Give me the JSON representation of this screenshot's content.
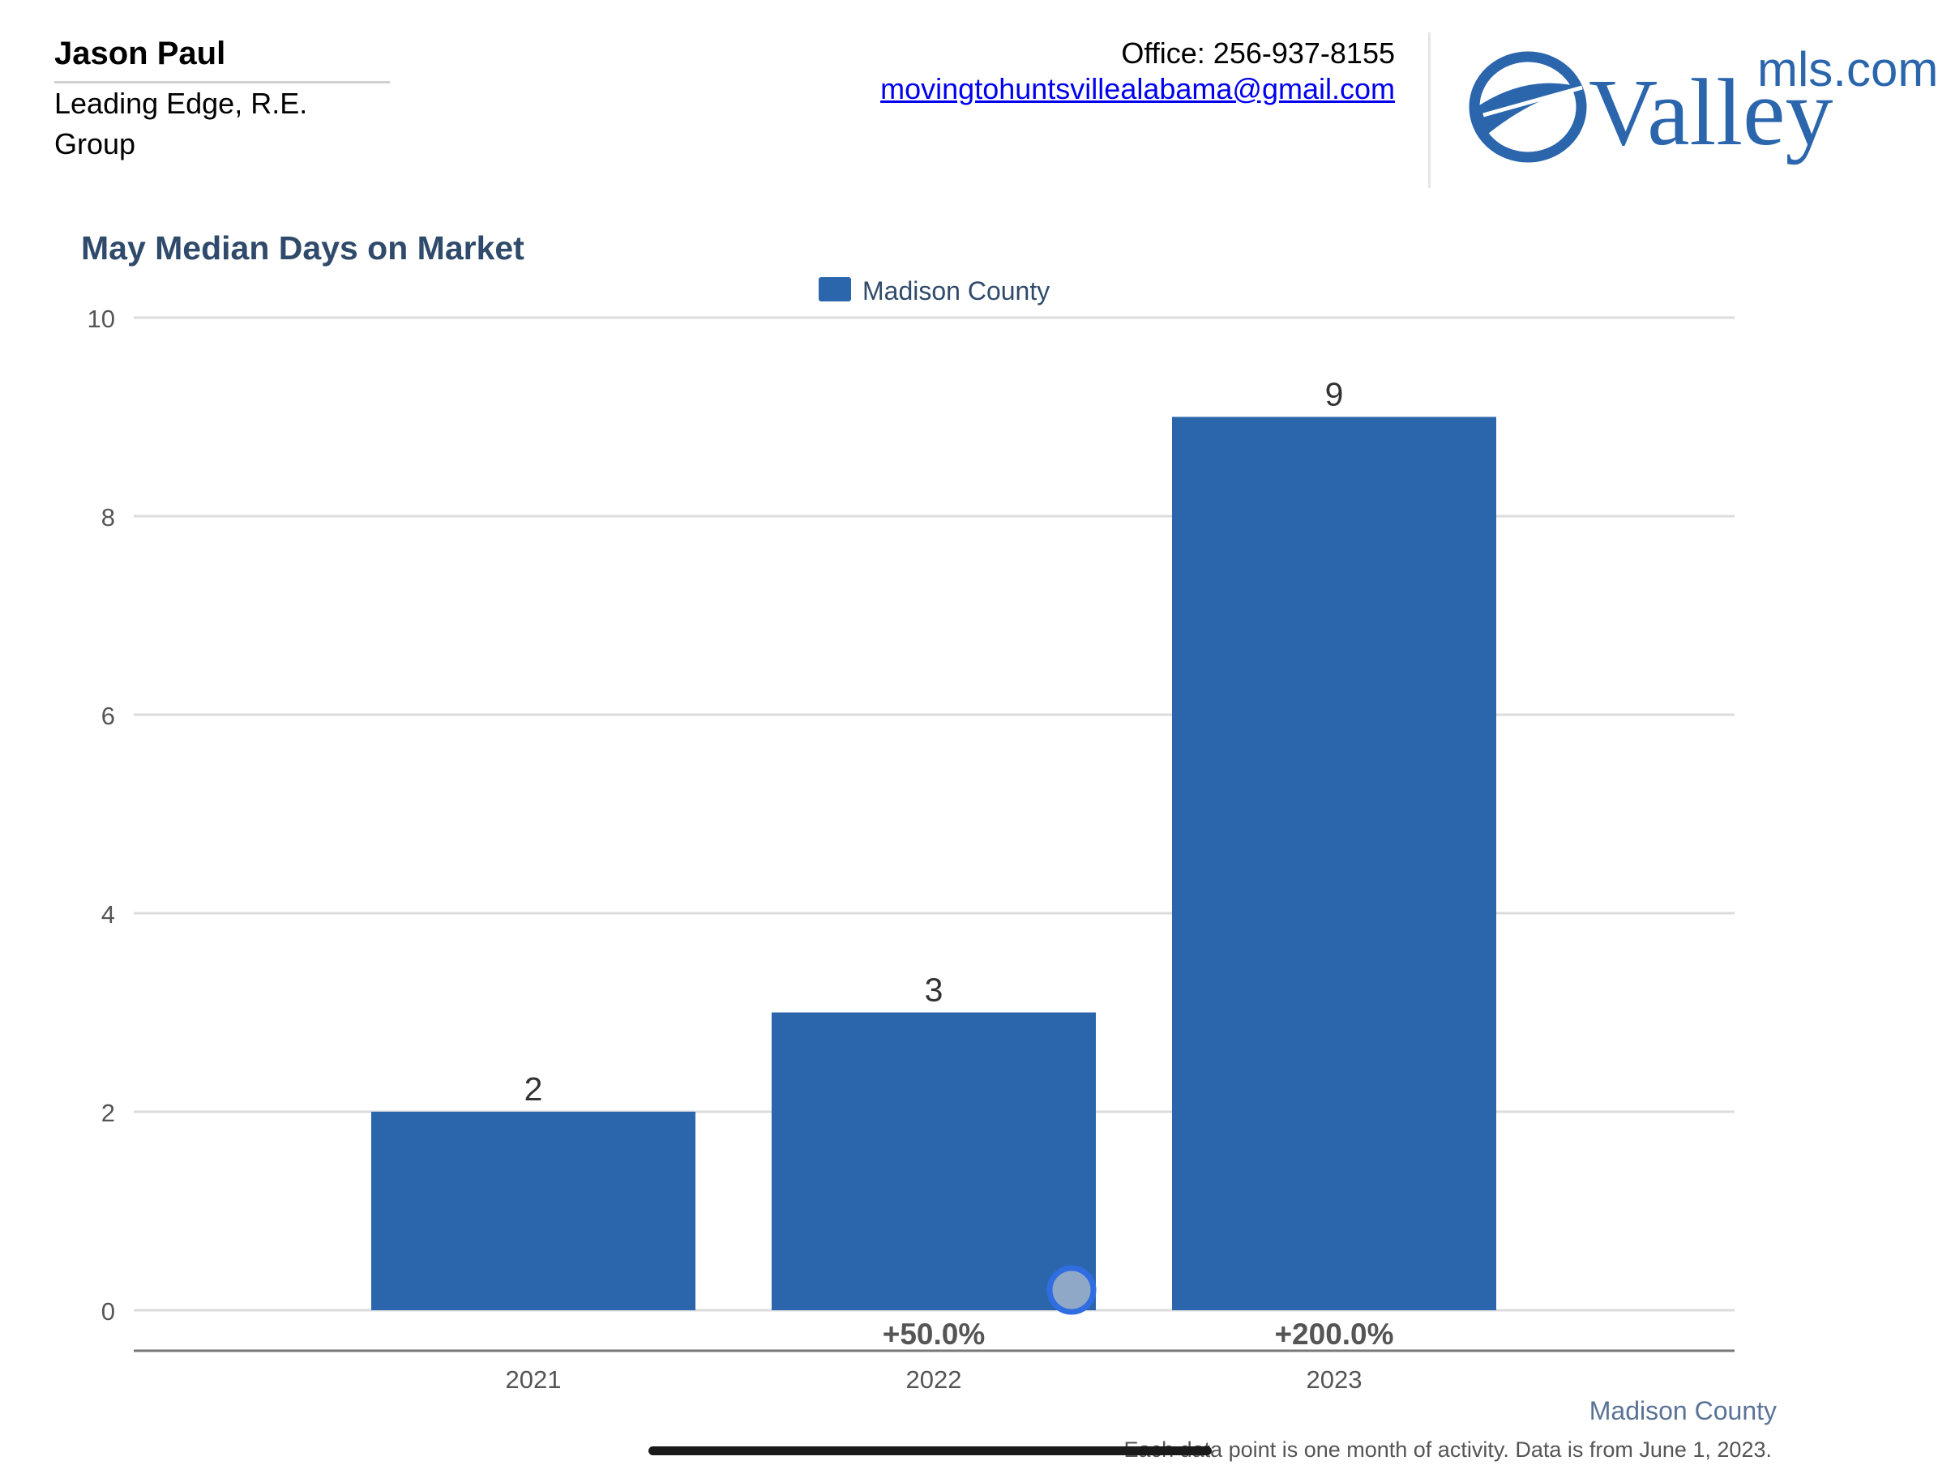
{
  "agent": {
    "name": "Jason Paul",
    "company": "Leading Edge, R.E. Group"
  },
  "contact": {
    "phone": "Office: 256-937-8155",
    "email": "movingtohuntsvillealabama@gmail.com"
  },
  "logo": {
    "mls_text": "mls.com",
    "brand_text": "Valley",
    "color": "#2b66ad"
  },
  "chart_data": {
    "type": "bar",
    "title": "May Median Days on Market",
    "legend": {
      "label": "Madison County",
      "position": "top-center"
    },
    "categories": [
      "2021",
      "2022",
      "2023"
    ],
    "series": [
      {
        "name": "Madison County",
        "values": [
          2,
          3,
          9
        ]
      }
    ],
    "value_labels": [
      "2",
      "3",
      "9"
    ],
    "change_labels": [
      "",
      "+50.0%",
      "+200.0%"
    ],
    "ylim": [
      0,
      10
    ],
    "yticks": [
      0,
      2,
      4,
      6,
      8,
      10
    ],
    "grid": true,
    "bar_color": "#2b66ad",
    "footer_region": "Madison County",
    "footer_note": "Each data point is one month of activity. Data is from June 1, 2023."
  }
}
